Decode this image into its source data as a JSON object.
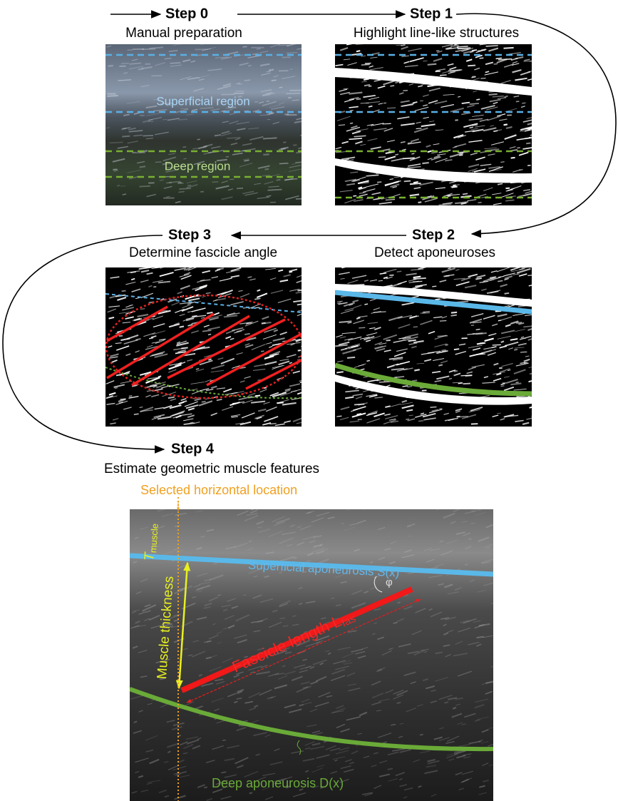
{
  "steps": [
    {
      "label": "Step 0",
      "title": "Manual preparation"
    },
    {
      "label": "Step 1",
      "title": "Highlight line-like structures"
    },
    {
      "label": "Step 2",
      "title": "Detect aponeuroses"
    },
    {
      "label": "Step 3",
      "title": "Determine fascicle angle"
    },
    {
      "label": "Step 4",
      "title": "Estimate geometric muscle features"
    }
  ],
  "step0_labels": {
    "superficial": "Superficial region",
    "deep": "Deep region"
  },
  "step4_labels": {
    "location": "Selected horizontal location",
    "superficial": "Superficial aponeurosis S(x)",
    "deep": "Deep aponeurosis D(x)",
    "thickness": "Muscle thickness",
    "thickness_symbol": {
      "symbol": "T",
      "subscript": "muscle"
    },
    "fascicle": {
      "text": "Fascicle length L",
      "subscript": "fas"
    },
    "angle": "φ"
  }
}
